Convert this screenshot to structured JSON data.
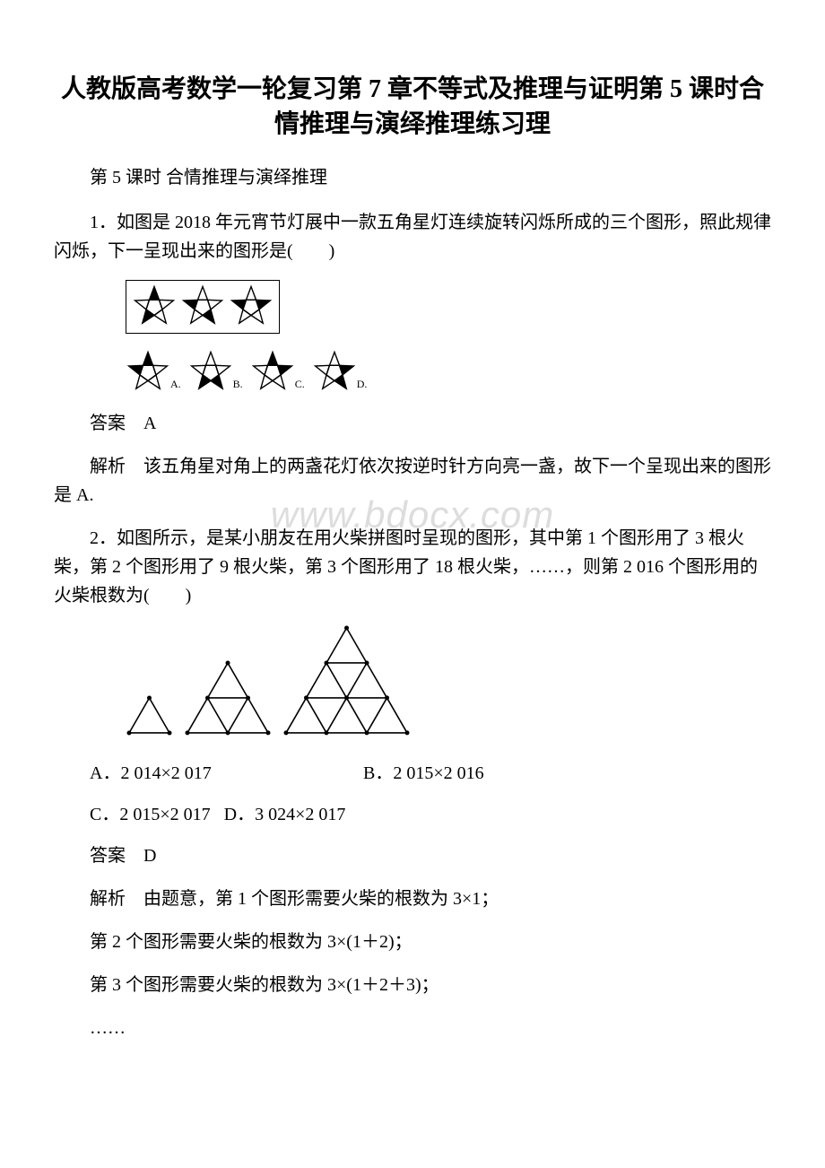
{
  "title": "人教版高考数学一轮复习第 7 章不等式及推理与证明第 5 课时合情推理与演绎推理练习理",
  "subtitle": "第 5 课时 合情推理与演绎推理",
  "watermark": "www.bdocx.com",
  "q1": {
    "text": "1．如图是 2018 年元宵节灯展中一款五角星灯连续旋转闪烁所成的三个图形，照此规律闪烁，下一呈现出来的图形是(　　)",
    "labels": [
      "A.",
      "B.",
      "C.",
      "D."
    ],
    "answer_label": "答案　A",
    "explain": "解析　该五角星对角上的两盏花灯依次按逆时针方向亮一盏，故下一个呈现出来的图形是 A.",
    "stars_top": {
      "size": 50,
      "color": "#000000",
      "fills": [
        [
          true,
          false,
          false,
          true,
          false
        ],
        [
          false,
          false,
          true,
          false,
          true
        ],
        [
          false,
          true,
          false,
          false,
          true
        ]
      ]
    },
    "stars_bottom": {
      "size": 50,
      "color": "#000000",
      "fills": [
        [
          true,
          false,
          false,
          false,
          true
        ],
        [
          false,
          false,
          true,
          true,
          false
        ],
        [
          true,
          true,
          false,
          false,
          false
        ],
        [
          false,
          true,
          true,
          false,
          false
        ]
      ]
    }
  },
  "q2": {
    "text": "2．如图所示，是某小朋友在用火柴拼图时呈现的图形，其中第 1 个图形用了 3 根火柴，第 2 个图形用了 9 根火柴，第 3 个图形用了 18 根火柴，……，则第 2 016 个图形用的火柴根数为(　　)",
    "triangles": {
      "levels": [
        1,
        2,
        3
      ],
      "color": "#000000"
    },
    "opts": {
      "A": "A．2 014×2 017",
      "B": "B．2 015×2 016",
      "C": "C．2 015×2 017",
      "D": "D．3 024×2 017"
    },
    "answer_label": "答案　D",
    "explain_lines": [
      "解析　由题意，第 1 个图形需要火柴的根数为 3×1；",
      "第 2 个图形需要火柴的根数为 3×(1＋2)；",
      "第 3 个图形需要火柴的根数为 3×(1＋2＋3)；",
      "……"
    ]
  }
}
